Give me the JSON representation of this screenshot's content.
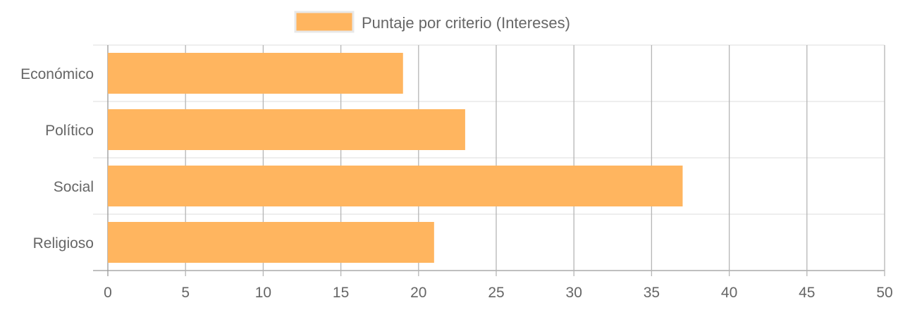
{
  "chart_data": {
    "type": "bar",
    "orientation": "horizontal",
    "categories": [
      "Económico",
      "Político",
      "Social",
      "Religioso"
    ],
    "series": [
      {
        "name": "Puntaje por criterio (Intereses)",
        "values": [
          19,
          23,
          37,
          21
        ],
        "color": "#FFB55F"
      }
    ],
    "xlim": [
      0,
      50
    ],
    "xticks": [
      "0",
      "5",
      "10",
      "15",
      "20",
      "25",
      "30",
      "35",
      "40",
      "45",
      "50"
    ],
    "grid": true,
    "legend": "top-center"
  }
}
